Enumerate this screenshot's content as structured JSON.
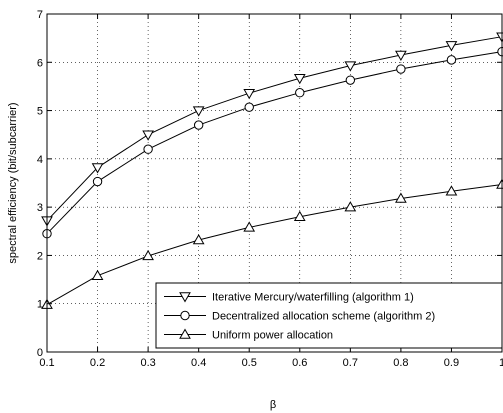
{
  "chart_data": {
    "type": "line",
    "title": "",
    "xlabel": "β",
    "ylabel": "spectral efficiency (bit/subcarrier)",
    "x": [
      0.1,
      0.2,
      0.3,
      0.4,
      0.5,
      0.6,
      0.7,
      0.8,
      0.9,
      1.0
    ],
    "xlim": [
      0.1,
      1.0
    ],
    "ylim": [
      0,
      7
    ],
    "x_ticks": [
      "0.1",
      "0.2",
      "0.3",
      "0.4",
      "0.5",
      "0.6",
      "0.7",
      "0.8",
      "0.9",
      "1"
    ],
    "y_ticks": [
      "0",
      "1",
      "2",
      "3",
      "4",
      "5",
      "6",
      "7"
    ],
    "grid": true,
    "legend_position": "bottom-right",
    "series": [
      {
        "name": "Iterative Mercury/waterfilling (algorithm 1)",
        "marker": "triangle-down",
        "color": "#000000",
        "values": [
          2.72,
          3.82,
          4.5,
          5.0,
          5.36,
          5.67,
          5.93,
          6.15,
          6.35,
          6.53
        ]
      },
      {
        "name": "Decentralized allocation scheme (algorithm 2)",
        "marker": "circle",
        "color": "#000000",
        "values": [
          2.45,
          3.53,
          4.2,
          4.7,
          5.07,
          5.37,
          5.63,
          5.86,
          6.05,
          6.22
        ]
      },
      {
        "name": "Uniform power allocation",
        "marker": "triangle-up",
        "color": "#000000",
        "values": [
          0.98,
          1.58,
          1.99,
          2.32,
          2.58,
          2.8,
          3.0,
          3.18,
          3.33,
          3.47
        ]
      }
    ]
  }
}
